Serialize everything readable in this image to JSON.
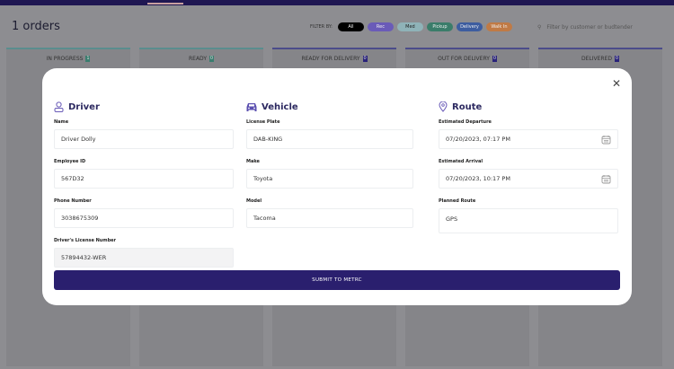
{
  "header": {
    "title": "1 orders",
    "filter_label": "FILTER BY:",
    "search_placeholder": "Filter by customer or budtender"
  },
  "filters": [
    {
      "label": "All",
      "color": "#000000"
    },
    {
      "label": "Rec",
      "color": "#6a5bb8"
    },
    {
      "label": "Med",
      "color": "#8fb3b8"
    },
    {
      "label": "Pickup",
      "color": "#3a7d6a"
    },
    {
      "label": "Delivery",
      "color": "#3d5da0"
    },
    {
      "label": "Walk In",
      "color": "#c07a45"
    }
  ],
  "columns": [
    {
      "label": "IN PROGRESS",
      "count": "1"
    },
    {
      "label": "READY",
      "count": "0"
    },
    {
      "label": "READY FOR DELIVERY",
      "count": "0"
    },
    {
      "label": "OUT FOR DELIVERY",
      "count": "0"
    },
    {
      "label": "DELIVERED",
      "count": "0"
    }
  ],
  "modal": {
    "driver": {
      "title": "Driver",
      "fields": [
        {
          "label": "Name",
          "value": "Driver Dolly"
        },
        {
          "label": "Employee ID",
          "value": "567D32"
        },
        {
          "label": "Phone Number",
          "value": "3038675309"
        },
        {
          "label": "Driver's License Number",
          "value": "57894432-WER"
        }
      ]
    },
    "vehicle": {
      "title": "Vehicle",
      "fields": [
        {
          "label": "License Plate",
          "value": "DAB-KING"
        },
        {
          "label": "Make",
          "value": "Toyota"
        },
        {
          "label": "Model",
          "value": "Tacoma"
        }
      ]
    },
    "route": {
      "title": "Route",
      "fields": [
        {
          "label": "Estimated Departure",
          "value": "07/20/2023, 07:17 PM"
        },
        {
          "label": "Estimated Arrival",
          "value": "07/20/2023, 10:17 PM"
        },
        {
          "label": "Planned Route",
          "value": "GPS"
        }
      ]
    },
    "submit_label": "SUBMIT TO METRC"
  },
  "colors": {
    "accent": "#2a1f6e",
    "topbar": "#1f1752"
  }
}
